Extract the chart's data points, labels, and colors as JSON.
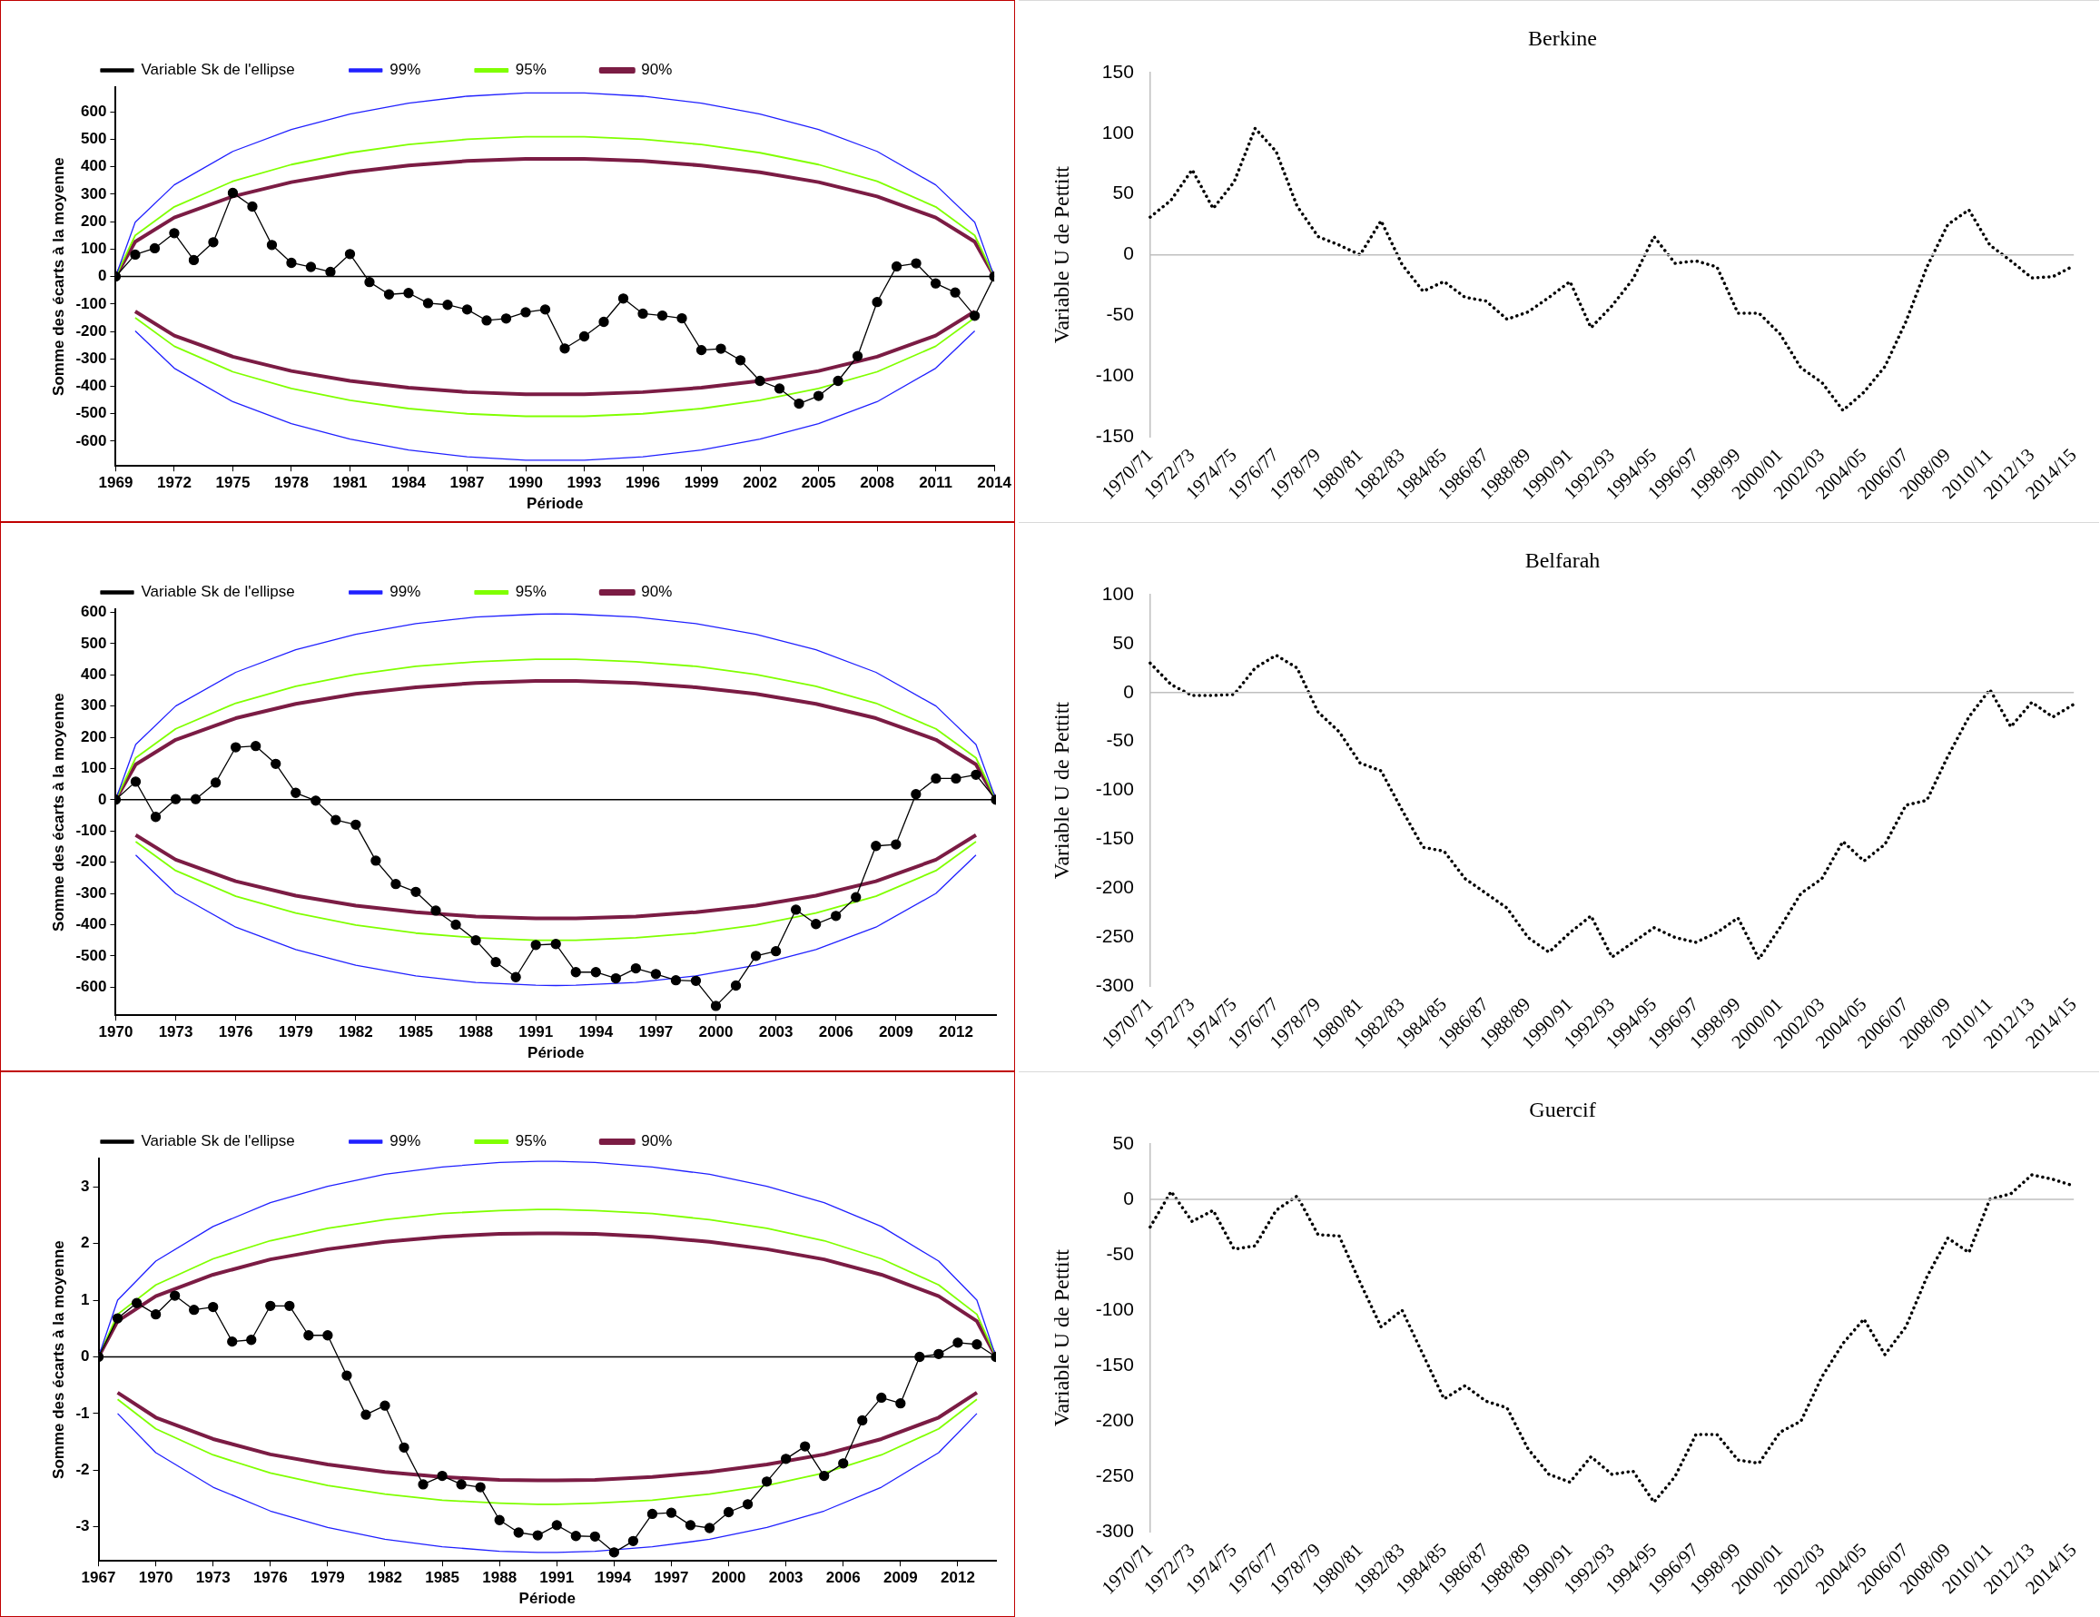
{
  "chart_data": [
    {
      "type": "line",
      "xlabel": "Période",
      "ylabel": "Somme des écarts à la moyenne",
      "legend": "top",
      "xlim": [
        1969,
        2014
      ],
      "xticks": [
        1969,
        1972,
        1975,
        1978,
        1981,
        1984,
        1987,
        1990,
        1993,
        1996,
        1999,
        2002,
        2005,
        2008,
        2011,
        2014
      ],
      "ylim": [
        -690,
        690
      ],
      "yticks": [
        -600,
        -500,
        -400,
        -300,
        -200,
        -100,
        0,
        100,
        200,
        300,
        400,
        500,
        600
      ],
      "ref_lines": [
        {
          "axis": "y",
          "value": 0,
          "color": "#000000"
        }
      ],
      "series": [
        {
          "name": "Variable Sk de l'ellipse",
          "color": "#000000",
          "marker": "circle",
          "x": [
            1969,
            1970,
            1971,
            1972,
            1973,
            1974,
            1975,
            1976,
            1977,
            1978,
            1979,
            1980,
            1981,
            1982,
            1983,
            1984,
            1985,
            1986,
            1987,
            1988,
            1989,
            1990,
            1991,
            1992,
            1993,
            1994,
            1995,
            1996,
            1997,
            1998,
            1999,
            2000,
            2001,
            2002,
            2003,
            2004,
            2005,
            2006,
            2007,
            2008,
            2009,
            2010,
            2011,
            2012,
            2013,
            2014
          ],
          "values": [
            0,
            80,
            103,
            158,
            60,
            125,
            305,
            255,
            115,
            50,
            35,
            17,
            82,
            -20,
            -65,
            -60,
            -97,
            -103,
            -120,
            -160,
            -153,
            -130,
            -120,
            -262,
            -218,
            -165,
            -80,
            -135,
            -142,
            -152,
            -268,
            -263,
            -305,
            -380,
            -408,
            -463,
            -435,
            -380,
            -290,
            -93,
            37,
            48,
            -25,
            -58,
            -143,
            0
          ]
        },
        {
          "name": "99%",
          "color": "#2020ff",
          "marker": "none",
          "x": [
            1969,
            1970,
            1972,
            1975,
            1978,
            1981,
            1984,
            1987,
            1990,
            1993,
            1996,
            1999,
            2002,
            2005,
            2008,
            2011,
            2013,
            2014
          ],
          "values": [
            0,
            198,
            334,
            456,
            536,
            592,
            632,
            657,
            669,
            669,
            657,
            632,
            592,
            536,
            456,
            334,
            198,
            0
          ]
        },
        {
          "color": "#2020ff",
          "marker": "none",
          "x": [
            1970,
            1972,
            1975,
            1978,
            1981,
            1984,
            1987,
            1990,
            1993,
            1996,
            1999,
            2002,
            2005,
            2008,
            2011,
            2013
          ],
          "values": [
            -198,
            -334,
            -456,
            -536,
            -592,
            -632,
            -657,
            -669,
            -669,
            -657,
            -632,
            -592,
            -536,
            -456,
            -334,
            -198
          ]
        },
        {
          "name": "95%",
          "color": "#80ff00",
          "marker": "none",
          "x": [
            1969,
            1970,
            1972,
            1975,
            1978,
            1981,
            1984,
            1987,
            1990,
            1993,
            1996,
            1999,
            2002,
            2005,
            2008,
            2011,
            2013,
            2014
          ],
          "values": [
            0,
            150,
            254,
            347,
            408,
            451,
            481,
            500,
            509,
            509,
            500,
            481,
            451,
            408,
            347,
            254,
            150,
            0
          ]
        },
        {
          "color": "#80ff00",
          "marker": "none",
          "x": [
            1970,
            1972,
            1975,
            1978,
            1981,
            1984,
            1987,
            1990,
            1993,
            1996,
            1999,
            2002,
            2005,
            2008,
            2011,
            2013
          ],
          "values": [
            -150,
            -254,
            -347,
            -408,
            -451,
            -481,
            -500,
            -509,
            -509,
            -500,
            -481,
            -451,
            -408,
            -347,
            -254,
            -150
          ]
        },
        {
          "name": "90%",
          "color": "#7b1c44",
          "marker": "none",
          "x": [
            1969,
            1970,
            1972,
            1975,
            1978,
            1981,
            1984,
            1987,
            1990,
            1993,
            1996,
            1999,
            2002,
            2005,
            2008,
            2011,
            2013,
            2014
          ],
          "values": [
            0,
            127,
            215,
            292,
            344,
            380,
            405,
            421,
            429,
            429,
            421,
            405,
            380,
            344,
            292,
            215,
            127,
            0
          ]
        },
        {
          "color": "#7b1c44",
          "marker": "none",
          "x": [
            1970,
            1972,
            1975,
            1978,
            1981,
            1984,
            1987,
            1990,
            1993,
            1996,
            1999,
            2002,
            2005,
            2008,
            2011,
            2013
          ],
          "values": [
            -127,
            -215,
            -292,
            -344,
            -380,
            -405,
            -421,
            -429,
            -429,
            -421,
            -405,
            -380,
            -344,
            -292,
            -215,
            -127
          ]
        }
      ]
    },
    {
      "type": "line",
      "title": "Berkine",
      "ylabel": "Variable U de Pettitt",
      "line_style": "dotted",
      "ylim": [
        -150,
        150
      ],
      "yticks": [
        -150,
        -100,
        -50,
        0,
        50,
        100,
        150
      ],
      "ref_lines": [
        {
          "axis": "y",
          "value": 0,
          "color": "#bfbfbf"
        }
      ],
      "categories": [
        "1970/71",
        null,
        "1972/73",
        null,
        "1974/75",
        null,
        "1976/77",
        null,
        "1978/79",
        null,
        "1980/81",
        null,
        "1982/83",
        null,
        "1984/85",
        null,
        "1986/87",
        null,
        "1988/89",
        null,
        "1990/91",
        null,
        "1992/93",
        null,
        "1994/95",
        null,
        "1996/97",
        null,
        "1998/99",
        null,
        "2000/01",
        null,
        "2002/03",
        null,
        "2004/05",
        null,
        "2006/07",
        null,
        "2008/09",
        null,
        "2010/11",
        null,
        "2012/13",
        null,
        "2014/15"
      ],
      "series": [
        {
          "color": "#000000",
          "values": [
            31,
            45,
            70,
            38,
            60,
            104,
            85,
            40,
            15,
            8,
            0,
            28,
            -8,
            -30,
            -22,
            -35,
            -38,
            -53,
            -47,
            -35,
            -22,
            -60,
            -42,
            -20,
            15,
            -7,
            -5,
            -10,
            -48,
            -48,
            -65,
            -93,
            -105,
            -128,
            -113,
            -92,
            -55,
            -10,
            25,
            37,
            8,
            -5,
            -19,
            -18,
            -9
          ]
        }
      ]
    },
    {
      "type": "line",
      "xlabel": "Période",
      "ylabel": "Somme des écarts à la moyenne",
      "legend": "top",
      "xlim": [
        1970,
        2014
      ],
      "xticks": [
        1970,
        1973,
        1976,
        1979,
        1982,
        1985,
        1988,
        1991,
        1994,
        1997,
        2000,
        2003,
        2006,
        2009,
        2012
      ],
      "ylim": [
        -690,
        610
      ],
      "yticks": [
        -600,
        -500,
        -400,
        -300,
        -200,
        -100,
        0,
        100,
        200,
        300,
        400,
        500,
        600
      ],
      "ref_lines": [
        {
          "axis": "y",
          "value": 0,
          "color": "#000000"
        }
      ],
      "series": [
        {
          "name": "Variable Sk de l'ellipse",
          "color": "#000000",
          "marker": "circle",
          "x": [
            1970,
            1971,
            1972,
            1973,
            1974,
            1975,
            1976,
            1977,
            1978,
            1979,
            1980,
            1981,
            1982,
            1983,
            1984,
            1985,
            1986,
            1987,
            1988,
            1989,
            1990,
            1991,
            1992,
            1993,
            1994,
            1995,
            1996,
            1997,
            1998,
            1999,
            2000,
            2001,
            2002,
            2003,
            2004,
            2005,
            2006,
            2007,
            2008,
            2009,
            2010,
            2011,
            2012,
            2013,
            2014
          ],
          "values": [
            0,
            58,
            -55,
            2,
            2,
            55,
            168,
            172,
            115,
            22,
            -3,
            -65,
            -80,
            -195,
            -270,
            -295,
            -355,
            -400,
            -450,
            -520,
            -568,
            -465,
            -462,
            -552,
            -552,
            -572,
            -540,
            -558,
            -578,
            -580,
            -660,
            -595,
            -500,
            -485,
            -352,
            -398,
            -372,
            -312,
            -148,
            -143,
            18,
            68,
            68,
            80,
            0
          ]
        },
        {
          "name": "99%",
          "color": "#2020ff",
          "marker": "none",
          "x": [
            1970,
            1971,
            1973,
            1976,
            1979,
            1982,
            1985,
            1988,
            1991,
            1992,
            1993,
            1996,
            1999,
            2002,
            2005,
            2008,
            2011,
            2013,
            2014
          ],
          "values": [
            0,
            177,
            300,
            408,
            480,
            530,
            564,
            585,
            594,
            595,
            594,
            585,
            564,
            530,
            480,
            408,
            300,
            177,
            0
          ]
        },
        {
          "color": "#2020ff",
          "marker": "none",
          "x": [
            1971,
            1973,
            1976,
            1979,
            1982,
            1985,
            1988,
            1991,
            1992,
            1993,
            1996,
            1999,
            2002,
            2005,
            2008,
            2011,
            2013
          ],
          "values": [
            -177,
            -300,
            -408,
            -480,
            -530,
            -564,
            -585,
            -594,
            -595,
            -594,
            -585,
            -564,
            -530,
            -480,
            -408,
            -300,
            -177
          ]
        },
        {
          "name": "95%",
          "color": "#80ff00",
          "marker": "none",
          "x": [
            1970,
            1971,
            1973,
            1976,
            1979,
            1982,
            1985,
            1988,
            1991,
            1992,
            1993,
            1996,
            1999,
            2002,
            2005,
            2008,
            2011,
            2013,
            2014
          ],
          "values": [
            0,
            134,
            227,
            309,
            363,
            401,
            427,
            442,
            450,
            450,
            450,
            442,
            427,
            401,
            363,
            309,
            227,
            134,
            0
          ]
        },
        {
          "color": "#80ff00",
          "marker": "none",
          "x": [
            1971,
            1973,
            1976,
            1979,
            1982,
            1985,
            1988,
            1991,
            1992,
            1993,
            1996,
            1999,
            2002,
            2005,
            2008,
            2011,
            2013
          ],
          "values": [
            -134,
            -227,
            -309,
            -363,
            -401,
            -427,
            -442,
            -450,
            -450,
            -450,
            -442,
            -427,
            -401,
            -363,
            -309,
            -227,
            -134
          ]
        },
        {
          "name": "90%",
          "color": "#7b1c44",
          "marker": "none",
          "x": [
            1970,
            1971,
            1973,
            1976,
            1979,
            1982,
            1985,
            1988,
            1991,
            1992,
            1993,
            1996,
            1999,
            2002,
            2005,
            2008,
            2011,
            2013,
            2014
          ],
          "values": [
            0,
            113,
            192,
            261,
            307,
            339,
            360,
            374,
            380,
            380,
            380,
            374,
            360,
            339,
            307,
            261,
            192,
            113,
            0
          ]
        },
        {
          "color": "#7b1c44",
          "marker": "none",
          "x": [
            1971,
            1973,
            1976,
            1979,
            1982,
            1985,
            1988,
            1991,
            1992,
            1993,
            1996,
            1999,
            2002,
            2005,
            2008,
            2011,
            2013
          ],
          "values": [
            -113,
            -192,
            -261,
            -307,
            -339,
            -360,
            -374,
            -380,
            -380,
            -380,
            -374,
            -360,
            -339,
            -307,
            -261,
            -192,
            -113
          ]
        }
      ]
    },
    {
      "type": "line",
      "title": "Belfarah",
      "ylabel": "Variable U de Pettitt",
      "line_style": "dotted",
      "ylim": [
        -300,
        100
      ],
      "yticks": [
        -300,
        -250,
        -200,
        -150,
        -100,
        -50,
        0,
        50,
        100
      ],
      "ref_lines": [
        {
          "axis": "y",
          "value": 0,
          "color": "#bfbfbf"
        }
      ],
      "categories": [
        "1970/71",
        null,
        "1972/73",
        null,
        "1974/75",
        null,
        "1976/77",
        null,
        "1978/79",
        null,
        "1980/81",
        null,
        "1982/83",
        null,
        "1984/85",
        null,
        "1986/87",
        null,
        "1988/89",
        null,
        "1990/91",
        null,
        "1992/93",
        null,
        "1994/95",
        null,
        "1996/97",
        null,
        "1998/99",
        null,
        "2000/01",
        null,
        "2002/03",
        null,
        "2004/05",
        null,
        "2006/07",
        null,
        "2008/09",
        null,
        "2010/11",
        null,
        "2012/13",
        null,
        "2014/15"
      ],
      "series": [
        {
          "color": "#000000",
          "values": [
            30,
            8,
            -3,
            -3,
            -2,
            25,
            38,
            25,
            -20,
            -40,
            -72,
            -80,
            -120,
            -158,
            -162,
            -190,
            -205,
            -220,
            -250,
            -265,
            -245,
            -228,
            -270,
            -255,
            -240,
            -250,
            -255,
            -245,
            -230,
            -272,
            -240,
            -205,
            -190,
            -152,
            -172,
            -155,
            -115,
            -110,
            -65,
            -25,
            3,
            -35,
            -10,
            -25,
            -12
          ]
        }
      ]
    },
    {
      "type": "line",
      "xlabel": "Période",
      "ylabel": "Somme des écarts à la moyenne",
      "legend": "top",
      "xlim": [
        1967,
        2014
      ],
      "xticks": [
        1967,
        1970,
        1973,
        1976,
        1979,
        1982,
        1985,
        1988,
        1991,
        1994,
        1997,
        2000,
        2003,
        2006,
        2009,
        2012
      ],
      "ylim": [
        -3.6,
        3.5
      ],
      "yticks": [
        -3,
        -2,
        -1,
        0,
        1,
        2,
        3
      ],
      "ref_lines": [
        {
          "axis": "y",
          "value": 0,
          "color": "#000000"
        }
      ],
      "series": [
        {
          "name": "Variable Sk de l'ellipse",
          "color": "#000000",
          "marker": "circle",
          "x": [
            1967,
            1968,
            1969,
            1970,
            1971,
            1972,
            1973,
            1974,
            1975,
            1976,
            1977,
            1978,
            1979,
            1980,
            1981,
            1982,
            1983,
            1984,
            1985,
            1986,
            1987,
            1988,
            1989,
            1990,
            1991,
            1992,
            1993,
            1994,
            1995,
            1996,
            1997,
            1998,
            1999,
            2000,
            2001,
            2002,
            2003,
            2004,
            2005,
            2006,
            2007,
            2008,
            2009,
            2010,
            2011,
            2012,
            2013,
            2014
          ],
          "values": [
            0,
            0.68,
            0.95,
            0.75,
            1.08,
            0.83,
            0.88,
            0.27,
            0.3,
            0.9,
            0.9,
            0.38,
            0.38,
            -0.33,
            -1.02,
            -0.86,
            -1.6,
            -2.25,
            -2.1,
            -2.25,
            -2.3,
            -2.88,
            -3.1,
            -3.15,
            -2.97,
            -3.16,
            -3.17,
            -3.45,
            -3.25,
            -2.77,
            -2.75,
            -2.97,
            -3.02,
            -2.74,
            -2.6,
            -2.2,
            -1.8,
            -1.58,
            -2.1,
            -1.88,
            -1.12,
            -0.72,
            -0.82,
            0,
            0.05,
            0.25,
            0.22,
            0
          ]
        },
        {
          "name": "99%",
          "color": "#2020ff",
          "marker": "none",
          "x": [
            1967,
            1968,
            1970,
            1973,
            1976,
            1979,
            1982,
            1985,
            1988,
            1990,
            1991,
            1993,
            1996,
            1999,
            2002,
            2005,
            2008,
            2011,
            2013,
            2014
          ],
          "values": [
            0,
            1,
            1.69,
            2.3,
            2.72,
            3.01,
            3.22,
            3.35,
            3.43,
            3.45,
            3.45,
            3.43,
            3.35,
            3.22,
            3.01,
            2.72,
            2.3,
            1.69,
            1,
            0
          ]
        },
        {
          "color": "#2020ff",
          "marker": "none",
          "x": [
            1968,
            1970,
            1973,
            1976,
            1979,
            1982,
            1985,
            1988,
            1990,
            1991,
            1993,
            1996,
            1999,
            2002,
            2005,
            2008,
            2011,
            2013
          ],
          "values": [
            -1,
            -1.69,
            -2.3,
            -2.72,
            -3.01,
            -3.22,
            -3.35,
            -3.43,
            -3.45,
            -3.45,
            -3.43,
            -3.35,
            -3.22,
            -3.01,
            -2.72,
            -2.3,
            -1.69,
            -1
          ]
        },
        {
          "name": "95%",
          "color": "#80ff00",
          "marker": "none",
          "x": [
            1967,
            1968,
            1970,
            1973,
            1976,
            1979,
            1982,
            1985,
            1988,
            1990,
            1991,
            1993,
            1996,
            1999,
            2002,
            2005,
            2008,
            2011,
            2013,
            2014
          ],
          "values": [
            0,
            0.75,
            1.27,
            1.73,
            2.05,
            2.27,
            2.42,
            2.53,
            2.58,
            2.6,
            2.6,
            2.58,
            2.53,
            2.42,
            2.27,
            2.05,
            1.73,
            1.27,
            0.75,
            0
          ]
        },
        {
          "color": "#80ff00",
          "marker": "none",
          "x": [
            1968,
            1970,
            1973,
            1976,
            1979,
            1982,
            1985,
            1988,
            1990,
            1991,
            1993,
            1996,
            1999,
            2002,
            2005,
            2008,
            2011,
            2013
          ],
          "values": [
            -0.75,
            -1.27,
            -1.73,
            -2.05,
            -2.27,
            -2.42,
            -2.53,
            -2.58,
            -2.6,
            -2.6,
            -2.58,
            -2.53,
            -2.42,
            -2.27,
            -2.05,
            -1.73,
            -1.27,
            -0.75
          ]
        },
        {
          "name": "90%",
          "color": "#7b1c44",
          "marker": "none",
          "x": [
            1967,
            1968,
            1970,
            1973,
            1976,
            1979,
            1982,
            1985,
            1988,
            1990,
            1991,
            1993,
            1996,
            1999,
            2002,
            2005,
            2008,
            2011,
            2013,
            2014
          ],
          "values": [
            0,
            0.63,
            1.07,
            1.45,
            1.72,
            1.9,
            2.03,
            2.12,
            2.17,
            2.18,
            2.18,
            2.17,
            2.12,
            2.03,
            1.9,
            1.72,
            1.45,
            1.07,
            0.63,
            0
          ]
        },
        {
          "color": "#7b1c44",
          "marker": "none",
          "x": [
            1968,
            1970,
            1973,
            1976,
            1979,
            1982,
            1985,
            1988,
            1990,
            1991,
            1993,
            1996,
            1999,
            2002,
            2005,
            2008,
            2011,
            2013
          ],
          "values": [
            -0.63,
            -1.07,
            -1.45,
            -1.72,
            -1.9,
            -2.03,
            -2.12,
            -2.17,
            -2.18,
            -2.18,
            -2.17,
            -2.12,
            -2.03,
            -1.9,
            -1.72,
            -1.45,
            -1.07,
            -0.63
          ]
        }
      ]
    },
    {
      "type": "line",
      "title": "Guercif",
      "ylabel": "Variable U de Pettitt",
      "line_style": "dotted",
      "ylim": [
        -300,
        50
      ],
      "yticks": [
        -300,
        -250,
        -200,
        -150,
        -100,
        -50,
        0,
        50
      ],
      "ref_lines": [
        {
          "axis": "y",
          "value": 0,
          "color": "#bfbfbf"
        }
      ],
      "categories": [
        "1970/71",
        null,
        "1972/73",
        null,
        "1974/75",
        null,
        "1976/77",
        null,
        "1978/79",
        null,
        "1980/81",
        null,
        "1982/83",
        null,
        "1984/85",
        null,
        "1986/87",
        null,
        "1988/89",
        null,
        "1990/91",
        null,
        "1992/93",
        null,
        "1994/95",
        null,
        "1996/97",
        null,
        "1998/99",
        null,
        "2000/01",
        null,
        "2002/03",
        null,
        "2004/05",
        null,
        "2006/07",
        null,
        "2008/09",
        null,
        "2010/11",
        null,
        "2012/13",
        null,
        "2014/15"
      ],
      "series": [
        {
          "color": "#000000",
          "values": [
            -25,
            7,
            -20,
            -10,
            -45,
            -42,
            -10,
            3,
            -32,
            -33,
            -75,
            -115,
            -100,
            -140,
            -180,
            -168,
            -182,
            -188,
            -225,
            -248,
            -255,
            -232,
            -248,
            -245,
            -273,
            -250,
            -212,
            -212,
            -235,
            -238,
            -210,
            -200,
            -160,
            -130,
            -108,
            -140,
            -115,
            -70,
            -35,
            -48,
            0,
            5,
            22,
            18,
            12
          ]
        }
      ]
    }
  ]
}
